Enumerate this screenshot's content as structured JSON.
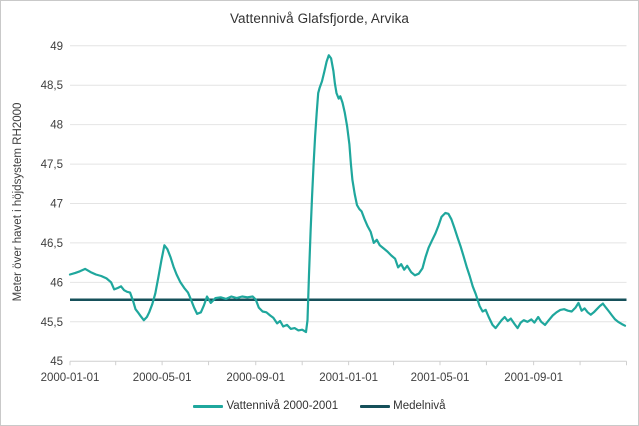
{
  "chart_data": {
    "type": "line",
    "title": "Vattennivå Glafsfjorde, Arvika",
    "ylabel": "Meter över havet i höjdsystem RH2000",
    "xlabel": "",
    "ylim": [
      45,
      49
    ],
    "x_range": [
      "2000-01-01",
      "2002-01-01"
    ],
    "grid": "horizontal",
    "legend_position": "bottom",
    "y_ticks": [
      {
        "v": 45,
        "label": "45"
      },
      {
        "v": 45.5,
        "label": "45,5"
      },
      {
        "v": 46,
        "label": "46"
      },
      {
        "v": 46.5,
        "label": "46,5"
      },
      {
        "v": 47,
        "label": "47"
      },
      {
        "v": 47.5,
        "label": "47,5"
      },
      {
        "v": 48,
        "label": "48"
      },
      {
        "v": 48.5,
        "label": "48,5"
      },
      {
        "v": 49,
        "label": "49"
      }
    ],
    "x_ticks": [
      {
        "d": "2000-01-01",
        "label": "2000-01-01"
      },
      {
        "d": "2000-03-01",
        "label": ""
      },
      {
        "d": "2000-05-01",
        "label": "2000-05-01"
      },
      {
        "d": "2000-07-01",
        "label": ""
      },
      {
        "d": "2000-09-01",
        "label": "2000-09-01"
      },
      {
        "d": "2000-11-01",
        "label": ""
      },
      {
        "d": "2001-01-01",
        "label": "2001-01-01"
      },
      {
        "d": "2001-03-01",
        "label": ""
      },
      {
        "d": "2001-05-01",
        "label": "2001-05-01"
      },
      {
        "d": "2001-07-01",
        "label": ""
      },
      {
        "d": "2001-09-01",
        "label": "2001-09-01"
      },
      {
        "d": "2001-11-01",
        "label": ""
      },
      {
        "d": "2002-01-01",
        "label": ""
      }
    ],
    "series": [
      {
        "name": "Vattennivå 2000-2001",
        "color": "#1FA79D",
        "points": [
          [
            "2000-01-01",
            46.1
          ],
          [
            "2000-01-08",
            46.12
          ],
          [
            "2000-01-14",
            46.14
          ],
          [
            "2000-01-21",
            46.17
          ],
          [
            "2000-01-28",
            46.13
          ],
          [
            "2000-02-04",
            46.1
          ],
          [
            "2000-02-11",
            46.08
          ],
          [
            "2000-02-18",
            46.05
          ],
          [
            "2000-02-24",
            46.0
          ],
          [
            "2000-02-28",
            45.91
          ],
          [
            "2000-03-04",
            45.93
          ],
          [
            "2000-03-08",
            45.95
          ],
          [
            "2000-03-12",
            45.9
          ],
          [
            "2000-03-16",
            45.88
          ],
          [
            "2000-03-20",
            45.87
          ],
          [
            "2000-03-24",
            45.76
          ],
          [
            "2000-03-27",
            45.66
          ],
          [
            "2000-03-31",
            45.61
          ],
          [
            "2000-04-03",
            45.57
          ],
          [
            "2000-04-07",
            45.52
          ],
          [
            "2000-04-11",
            45.56
          ],
          [
            "2000-04-14",
            45.62
          ],
          [
            "2000-04-18",
            45.72
          ],
          [
            "2000-04-22",
            45.86
          ],
          [
            "2000-04-26",
            46.06
          ],
          [
            "2000-04-30",
            46.28
          ],
          [
            "2000-05-04",
            46.47
          ],
          [
            "2000-05-08",
            46.42
          ],
          [
            "2000-05-12",
            46.32
          ],
          [
            "2000-05-16",
            46.2
          ],
          [
            "2000-05-20",
            46.1
          ],
          [
            "2000-05-25",
            46.0
          ],
          [
            "2000-05-30",
            45.93
          ],
          [
            "2000-06-04",
            45.87
          ],
          [
            "2000-06-08",
            45.78
          ],
          [
            "2000-06-12",
            45.68
          ],
          [
            "2000-06-16",
            45.6
          ],
          [
            "2000-06-21",
            45.62
          ],
          [
            "2000-06-25",
            45.71
          ],
          [
            "2000-06-29",
            45.82
          ],
          [
            "2000-07-04",
            45.74
          ],
          [
            "2000-07-10",
            45.8
          ],
          [
            "2000-07-17",
            45.81
          ],
          [
            "2000-07-24",
            45.79
          ],
          [
            "2000-07-31",
            45.82
          ],
          [
            "2000-08-07",
            45.8
          ],
          [
            "2000-08-14",
            45.82
          ],
          [
            "2000-08-21",
            45.81
          ],
          [
            "2000-08-28",
            45.82
          ],
          [
            "2000-09-01",
            45.78
          ],
          [
            "2000-09-05",
            45.68
          ],
          [
            "2000-09-10",
            45.63
          ],
          [
            "2000-09-15",
            45.62
          ],
          [
            "2000-09-20",
            45.58
          ],
          [
            "2000-09-24",
            45.55
          ],
          [
            "2000-09-29",
            45.48
          ],
          [
            "2000-10-03",
            45.51
          ],
          [
            "2000-10-07",
            45.44
          ],
          [
            "2000-10-12",
            45.46
          ],
          [
            "2000-10-17",
            45.41
          ],
          [
            "2000-10-22",
            45.42
          ],
          [
            "2000-10-27",
            45.39
          ],
          [
            "2000-11-01",
            45.4
          ],
          [
            "2000-11-06",
            45.37
          ],
          [
            "2000-11-08",
            45.52
          ],
          [
            "2000-11-10",
            46.1
          ],
          [
            "2000-11-12",
            46.65
          ],
          [
            "2000-11-14",
            47.1
          ],
          [
            "2000-11-16",
            47.5
          ],
          [
            "2000-11-18",
            47.85
          ],
          [
            "2000-11-20",
            48.15
          ],
          [
            "2000-11-22",
            48.4
          ],
          [
            "2000-11-24",
            48.47
          ],
          [
            "2000-11-27",
            48.55
          ],
          [
            "2000-11-30",
            48.67
          ],
          [
            "2000-12-03",
            48.8
          ],
          [
            "2000-12-06",
            48.88
          ],
          [
            "2000-12-09",
            48.84
          ],
          [
            "2000-12-12",
            48.68
          ],
          [
            "2000-12-14",
            48.52
          ],
          [
            "2000-12-16",
            48.4
          ],
          [
            "2000-12-19",
            48.33
          ],
          [
            "2000-12-21",
            48.36
          ],
          [
            "2000-12-24",
            48.28
          ],
          [
            "2000-12-27",
            48.15
          ],
          [
            "2000-12-30",
            47.98
          ],
          [
            "2001-01-02",
            47.75
          ],
          [
            "2001-01-04",
            47.5
          ],
          [
            "2001-01-06",
            47.3
          ],
          [
            "2001-01-09",
            47.12
          ],
          [
            "2001-01-12",
            46.98
          ],
          [
            "2001-01-15",
            46.93
          ],
          [
            "2001-01-18",
            46.9
          ],
          [
            "2001-01-22",
            46.8
          ],
          [
            "2001-01-26",
            46.71
          ],
          [
            "2001-01-30",
            46.64
          ],
          [
            "2001-02-03",
            46.5
          ],
          [
            "2001-02-07",
            46.54
          ],
          [
            "2001-02-11",
            46.47
          ],
          [
            "2001-02-16",
            46.43
          ],
          [
            "2001-02-21",
            46.39
          ],
          [
            "2001-02-26",
            46.34
          ],
          [
            "2001-03-03",
            46.3
          ],
          [
            "2001-03-07",
            46.19
          ],
          [
            "2001-03-11",
            46.23
          ],
          [
            "2001-03-15",
            46.16
          ],
          [
            "2001-03-19",
            46.21
          ],
          [
            "2001-03-24",
            46.13
          ],
          [
            "2001-03-29",
            46.09
          ],
          [
            "2001-04-03",
            46.11
          ],
          [
            "2001-04-08",
            46.18
          ],
          [
            "2001-04-12",
            46.32
          ],
          [
            "2001-04-16",
            46.44
          ],
          [
            "2001-04-20",
            46.52
          ],
          [
            "2001-04-25",
            46.62
          ],
          [
            "2001-04-29",
            46.72
          ],
          [
            "2001-05-03",
            46.83
          ],
          [
            "2001-05-08",
            46.88
          ],
          [
            "2001-05-12",
            46.87
          ],
          [
            "2001-05-16",
            46.8
          ],
          [
            "2001-05-20",
            46.69
          ],
          [
            "2001-05-24",
            46.57
          ],
          [
            "2001-05-28",
            46.46
          ],
          [
            "2001-06-01",
            46.33
          ],
          [
            "2001-06-05",
            46.2
          ],
          [
            "2001-06-09",
            46.08
          ],
          [
            "2001-06-13",
            45.95
          ],
          [
            "2001-06-17",
            45.85
          ],
          [
            "2001-06-22",
            45.7
          ],
          [
            "2001-06-26",
            45.63
          ],
          [
            "2001-06-30",
            45.65
          ],
          [
            "2001-07-04",
            45.56
          ],
          [
            "2001-07-09",
            45.46
          ],
          [
            "2001-07-13",
            45.42
          ],
          [
            "2001-07-17",
            45.47
          ],
          [
            "2001-07-21",
            45.52
          ],
          [
            "2001-07-25",
            45.56
          ],
          [
            "2001-07-29",
            45.51
          ],
          [
            "2001-08-02",
            45.54
          ],
          [
            "2001-08-07",
            45.47
          ],
          [
            "2001-08-11",
            45.42
          ],
          [
            "2001-08-15",
            45.49
          ],
          [
            "2001-08-19",
            45.52
          ],
          [
            "2001-08-24",
            45.5
          ],
          [
            "2001-08-29",
            45.53
          ],
          [
            "2001-09-02",
            45.49
          ],
          [
            "2001-09-07",
            45.56
          ],
          [
            "2001-09-11",
            45.5
          ],
          [
            "2001-09-16",
            45.46
          ],
          [
            "2001-09-21",
            45.52
          ],
          [
            "2001-09-26",
            45.58
          ],
          [
            "2001-10-01",
            45.62
          ],
          [
            "2001-10-06",
            45.65
          ],
          [
            "2001-10-11",
            45.66
          ],
          [
            "2001-10-16",
            45.64
          ],
          [
            "2001-10-21",
            45.63
          ],
          [
            "2001-10-26",
            45.68
          ],
          [
            "2001-10-30",
            45.74
          ],
          [
            "2001-11-03",
            45.64
          ],
          [
            "2001-11-07",
            45.67
          ],
          [
            "2001-11-11",
            45.62
          ],
          [
            "2001-11-15",
            45.59
          ],
          [
            "2001-11-19",
            45.62
          ],
          [
            "2001-11-23",
            45.66
          ],
          [
            "2001-11-27",
            45.7
          ],
          [
            "2001-12-01",
            45.73
          ],
          [
            "2001-12-05",
            45.68
          ],
          [
            "2001-12-09",
            45.63
          ],
          [
            "2001-12-13",
            45.58
          ],
          [
            "2001-12-17",
            45.53
          ],
          [
            "2001-12-21",
            45.5
          ],
          [
            "2001-12-26",
            45.47
          ],
          [
            "2001-12-30",
            45.45
          ]
        ]
      },
      {
        "name": "Medelnivå",
        "color": "#16505A",
        "value": 45.78
      }
    ]
  }
}
